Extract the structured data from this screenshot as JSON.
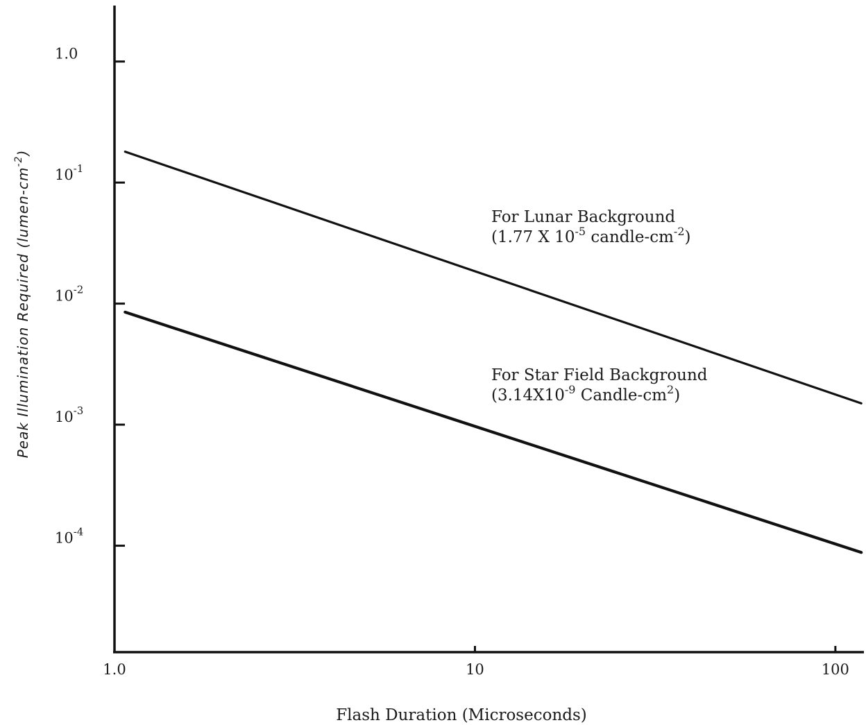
{
  "chart_data": {
    "type": "line",
    "x_scale": "log",
    "y_scale": "log",
    "xlim": [
      1.0,
      120
    ],
    "ylim": [
      1.32e-05,
      2.9
    ],
    "grid": false,
    "xlabel": "Flash Duration (Microseconds)",
    "ylabel": {
      "text": "Peak Illumination Required (lumen-cm",
      "sup": "-2",
      "close": ")"
    },
    "x_ticks": [
      {
        "value": 1.0,
        "label": "1.0"
      },
      {
        "value": 10,
        "label": "10"
      },
      {
        "value": 100,
        "label": "100"
      }
    ],
    "y_ticks": [
      {
        "value": 1.0,
        "label": "1.0",
        "base": "",
        "exp": ""
      },
      {
        "value": 0.1,
        "label": "",
        "base": "10",
        "exp": "-1"
      },
      {
        "value": 0.01,
        "label": "",
        "base": "10",
        "exp": "-2"
      },
      {
        "value": 0.001,
        "label": "",
        "base": "10",
        "exp": "-3"
      },
      {
        "value": 0.0001,
        "label": "",
        "base": "10",
        "exp": "-4"
      }
    ],
    "series": [
      {
        "x": [
          1.07,
          118
        ],
        "y": [
          0.18,
          0.0015
        ]
      },
      {
        "x": [
          1.07,
          118
        ],
        "y": [
          0.0085,
          8.8e-05
        ]
      }
    ],
    "annotations": [
      {
        "line1": "For Lunar Background",
        "line2": {
          "pre": "(1.77 X 10",
          "sup1": "-5",
          "mid": " candle-cm",
          "sup2": "-2",
          "post": ")"
        }
      },
      {
        "line1": "For Star Field Background",
        "line2": {
          "pre": "(3.14X10",
          "sup1": "-9",
          "mid": " Candle-cm",
          "sup2": "2",
          "post": ")"
        }
      }
    ]
  }
}
